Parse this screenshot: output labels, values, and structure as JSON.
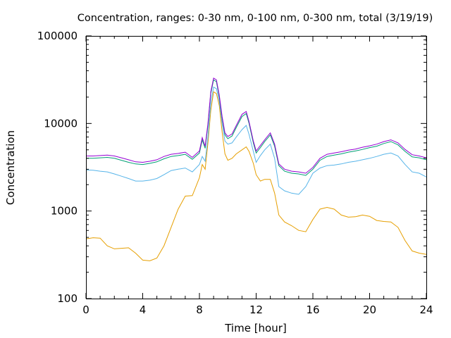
{
  "chart_data": {
    "type": "line",
    "title": "Concentration, ranges: 0-30 nm, 0-100 nm, 0-300 nm, total (3/19/19)",
    "xlabel": "Time [hour]",
    "ylabel": "Concentration",
    "xlim": [
      0,
      24
    ],
    "ylim": [
      100,
      100000
    ],
    "yscale": "log",
    "grid": false,
    "x_ticks": [
      0,
      4,
      8,
      12,
      16,
      20,
      24
    ],
    "x_tick_labels": [
      "0",
      "4",
      "8",
      "12",
      "16",
      "20",
      "24"
    ],
    "y_ticks": [
      100,
      1000,
      10000,
      100000
    ],
    "y_tick_labels": [
      "100",
      "1000",
      "10000",
      "100000"
    ],
    "series": [
      {
        "color": "#e69f00",
        "x": [
          0,
          0.5,
          1,
          1.5,
          2,
          2.5,
          3,
          3.5,
          4,
          4.5,
          5,
          5.5,
          6,
          6.5,
          7,
          7.5,
          8,
          8.2,
          8.4,
          8.6,
          8.8,
          9,
          9.2,
          9.4,
          9.6,
          9.8,
          10,
          10.3,
          10.6,
          11,
          11.3,
          11.5,
          11.8,
          12,
          12.3,
          12.6,
          13,
          13.3,
          13.6,
          14,
          14.5,
          15,
          15.5,
          16,
          16.5,
          17,
          17.5,
          18,
          18.5,
          19,
          19.5,
          20,
          20.5,
          21,
          21.5,
          22,
          22.5,
          23,
          23.5,
          24
        ],
        "values": [
          480,
          495,
          490,
          400,
          370,
          375,
          380,
          330,
          275,
          270,
          290,
          400,
          650,
          1050,
          1480,
          1500,
          2400,
          3400,
          3000,
          6000,
          14000,
          23000,
          22000,
          16000,
          8000,
          4500,
          3800,
          4000,
          4500,
          5000,
          5400,
          4800,
          3500,
          2600,
          2200,
          2300,
          2300,
          1600,
          900,
          750,
          680,
          600,
          580,
          800,
          1050,
          1100,
          1050,
          900,
          850,
          860,
          900,
          870,
          780,
          760,
          750,
          650,
          460,
          350,
          330,
          320
        ]
      },
      {
        "color": "#56b4e9",
        "x": [
          0,
          0.5,
          1,
          1.5,
          2,
          2.5,
          3,
          3.5,
          4,
          4.5,
          5,
          5.5,
          6,
          6.5,
          7,
          7.5,
          8,
          8.2,
          8.4,
          8.6,
          8.8,
          9,
          9.2,
          9.4,
          9.6,
          9.8,
          10,
          10.3,
          10.6,
          11,
          11.3,
          11.5,
          11.8,
          12,
          12.3,
          12.6,
          13,
          13.3,
          13.6,
          14,
          14.5,
          15,
          15.5,
          16,
          16.5,
          17,
          17.5,
          18,
          18.5,
          19,
          19.5,
          20,
          20.5,
          21,
          21.5,
          22,
          22.5,
          23,
          23.5,
          24
        ],
        "values": [
          2950,
          2920,
          2850,
          2800,
          2650,
          2500,
          2350,
          2200,
          2200,
          2250,
          2350,
          2600,
          2900,
          3000,
          3100,
          2800,
          3400,
          4200,
          3700,
          7000,
          17000,
          26000,
          25000,
          18000,
          10000,
          6300,
          5800,
          6000,
          7000,
          8500,
          9500,
          7500,
          4800,
          3600,
          4300,
          5000,
          5800,
          4000,
          1900,
          1700,
          1600,
          1550,
          1900,
          2700,
          3100,
          3300,
          3350,
          3450,
          3600,
          3700,
          3850,
          4000,
          4200,
          4450,
          4600,
          4250,
          3400,
          2800,
          2700,
          2450
        ]
      },
      {
        "color": "#009e73",
        "x": [
          0,
          0.5,
          1,
          1.5,
          2,
          2.5,
          3,
          3.5,
          4,
          4.5,
          5,
          5.5,
          6,
          6.5,
          7,
          7.5,
          8,
          8.2,
          8.4,
          8.6,
          8.8,
          9,
          9.2,
          9.4,
          9.6,
          9.8,
          10,
          10.3,
          10.6,
          11,
          11.3,
          11.5,
          11.8,
          12,
          12.3,
          12.6,
          13,
          13.3,
          13.6,
          14,
          14.5,
          15,
          15.5,
          16,
          16.5,
          17,
          17.5,
          18,
          18.5,
          19,
          19.5,
          20,
          20.5,
          21,
          21.5,
          22,
          22.5,
          23,
          23.5,
          24
        ],
        "values": [
          4000,
          4000,
          4050,
          4100,
          4000,
          3800,
          3600,
          3450,
          3400,
          3500,
          3650,
          3950,
          4200,
          4300,
          4450,
          3900,
          4600,
          6500,
          5200,
          9500,
          22000,
          31500,
          30000,
          20000,
          11500,
          7400,
          6700,
          7200,
          9000,
          12000,
          13000,
          10000,
          6000,
          4600,
          5300,
          6200,
          7400,
          5500,
          3300,
          2850,
          2700,
          2650,
          2550,
          3000,
          3800,
          4200,
          4350,
          4500,
          4700,
          4850,
          5050,
          5300,
          5500,
          5900,
          6200,
          5700,
          4800,
          4150,
          4050,
          3850
        ]
      },
      {
        "color": "#9400d3",
        "x": [
          0,
          0.5,
          1,
          1.5,
          2,
          2.5,
          3,
          3.5,
          4,
          4.5,
          5,
          5.5,
          6,
          6.5,
          7,
          7.5,
          8,
          8.2,
          8.4,
          8.6,
          8.8,
          9,
          9.2,
          9.4,
          9.6,
          9.8,
          10,
          10.3,
          10.6,
          11,
          11.3,
          11.5,
          11.8,
          12,
          12.3,
          12.6,
          13,
          13.3,
          13.6,
          14,
          14.5,
          15,
          15.5,
          16,
          16.5,
          17,
          17.5,
          18,
          18.5,
          19,
          19.5,
          20,
          20.5,
          21,
          21.5,
          22,
          22.5,
          23,
          23.5,
          24
        ],
        "values": [
          4250,
          4250,
          4300,
          4350,
          4250,
          4050,
          3850,
          3650,
          3600,
          3700,
          3850,
          4200,
          4450,
          4550,
          4700,
          4100,
          4850,
          6900,
          5500,
          10000,
          23000,
          33000,
          31500,
          21000,
          12000,
          7800,
          7100,
          7600,
          9500,
          12700,
          13700,
          10500,
          6300,
          4850,
          5600,
          6500,
          7800,
          5800,
          3450,
          3000,
          2850,
          2800,
          2700,
          3150,
          4000,
          4450,
          4600,
          4750,
          4950,
          5100,
          5350,
          5550,
          5800,
          6200,
          6500,
          6000,
          5050,
          4400,
          4250,
          4050
        ]
      }
    ]
  }
}
